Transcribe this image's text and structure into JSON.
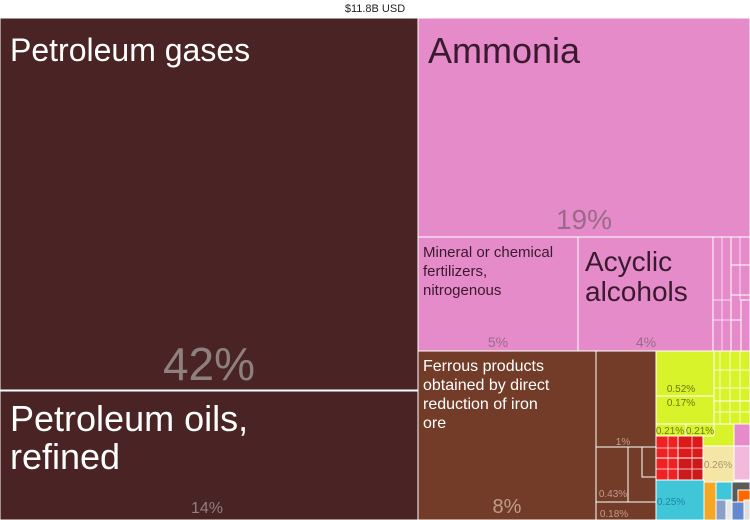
{
  "chart_data": {
    "type": "treemap",
    "title": "$11.8B USD",
    "items": [
      {
        "label": "Petroleum gases",
        "share_label": "42%",
        "value": 42,
        "color": "#4a2424"
      },
      {
        "label": "Petroleum oils, refined",
        "share_label": "14%",
        "value": 14,
        "color": "#4a2424"
      },
      {
        "label": "Ammonia",
        "share_label": "19%",
        "value": 19,
        "color": "#e58bc9"
      },
      {
        "label": "Mineral or chemical fertilizers, nitrogenous",
        "share_label": "5%",
        "value": 5,
        "color": "#e58bc9"
      },
      {
        "label": "Acyclic alcohols",
        "share_label": "4%",
        "value": 4,
        "color": "#e58bc9"
      },
      {
        "label": "Ferrous products obtained by direct reduction of iron ore",
        "share_label": "8%",
        "value": 8,
        "color": "#733c28"
      },
      {
        "label": "",
        "share_label": "1%",
        "value": 1,
        "color": "#733c28"
      },
      {
        "label": "",
        "share_label": "0.43%",
        "value": 0.43,
        "color": "#733c28"
      },
      {
        "label": "",
        "share_label": "0.18%",
        "value": 0.18,
        "color": "#733c28"
      },
      {
        "label": "",
        "share_label": "0.52%",
        "value": 0.52,
        "color": "#d8f32a"
      },
      {
        "label": "",
        "share_label": "0.17%",
        "value": 0.17,
        "color": "#d8f32a"
      },
      {
        "label": "",
        "share_label": "0.21%",
        "value": 0.21,
        "color": "#d8f32a"
      },
      {
        "label": "",
        "share_label": "0.21%",
        "value": 0.21,
        "color": "#d8f32a"
      },
      {
        "label": "",
        "share_label": "0.26%",
        "value": 0.26,
        "color": "#f6e6a6"
      },
      {
        "label": "",
        "share_label": "0.25%",
        "value": 0.25,
        "color": "#3fc6d8"
      }
    ]
  }
}
